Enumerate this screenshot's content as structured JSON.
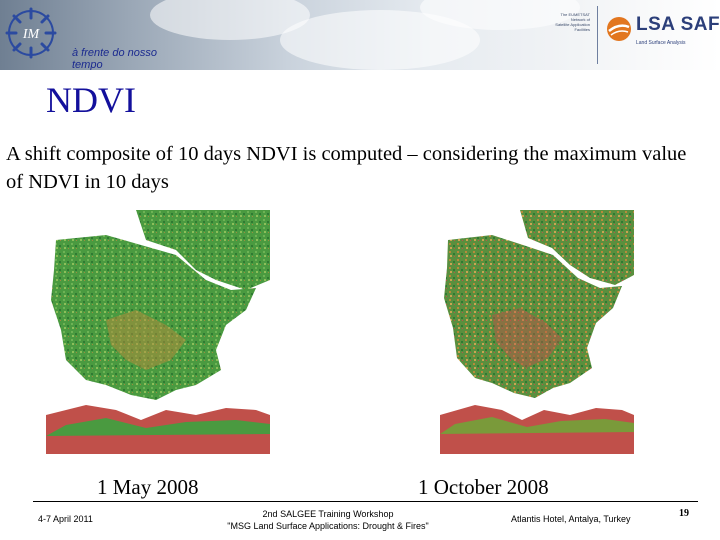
{
  "header": {
    "tagline_line1": "à frente do nosso",
    "tagline_line2": "tempo",
    "eumetsat_lines": [
      "The EUMETSAT",
      "Network of",
      "Satellite Application",
      "Facilities"
    ],
    "brand": "LSA SAF",
    "brand_sub": "Land Surface Analysis"
  },
  "slide": {
    "title": "NDVI",
    "body": "A shift composite of 10 days NDVI is computed – considering the maximum value of NDVI  in 10 days"
  },
  "figures": {
    "left_caption": "1 May 2008",
    "right_caption": "1 October 2008"
  },
  "footer": {
    "date": "4-7 April 2011",
    "workshop_line1": "2nd SALGEE Training Workshop",
    "workshop_line2": "\"MSG Land Surface Applications: Drought & Fires\"",
    "venue": "Atlantis Hotel, Antalya, Turkey",
    "page": "19"
  },
  "colors": {
    "title": "#13109c",
    "tagline": "#1b2a8f",
    "brand": "#2c3f7a",
    "map_green": "#3f8f3a",
    "map_dry": "#b88a3a",
    "map_red": "#c0504a"
  }
}
